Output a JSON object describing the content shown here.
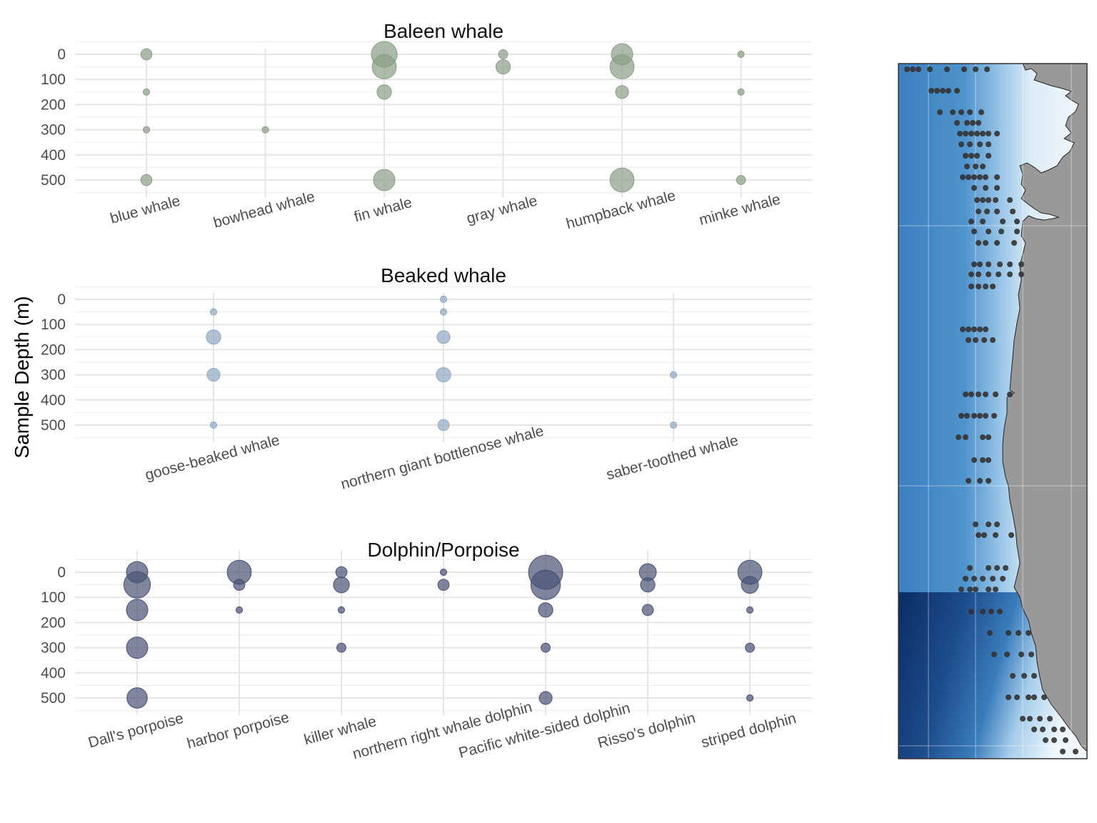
{
  "y_axis_title": "Sample Depth (m)",
  "chart_data": [
    {
      "type": "scatter",
      "title": "Baleen whale",
      "color": "#8a9e86",
      "ylabel": "Sample Depth (m)",
      "y_reversed": true,
      "ylim": [
        0,
        500
      ],
      "y_ticks": [
        0,
        100,
        200,
        300,
        400,
        500
      ],
      "categories": [
        "blue whale",
        "bowhead whale",
        "fin whale",
        "gray whale",
        "humpback whale",
        "minke whale"
      ],
      "points": [
        {
          "category": "blue whale",
          "depth": 0,
          "size": 3
        },
        {
          "category": "blue whale",
          "depth": 150,
          "size": 1
        },
        {
          "category": "blue whale",
          "depth": 300,
          "size": 1
        },
        {
          "category": "blue whale",
          "depth": 500,
          "size": 3
        },
        {
          "category": "bowhead whale",
          "depth": 300,
          "size": 1
        },
        {
          "category": "fin whale",
          "depth": 0,
          "size": 16
        },
        {
          "category": "fin whale",
          "depth": 50,
          "size": 14
        },
        {
          "category": "fin whale",
          "depth": 150,
          "size": 5
        },
        {
          "category": "fin whale",
          "depth": 500,
          "size": 11
        },
        {
          "category": "gray whale",
          "depth": 0,
          "size": 2
        },
        {
          "category": "gray whale",
          "depth": 50,
          "size": 5
        },
        {
          "category": "humpback whale",
          "depth": 0,
          "size": 11
        },
        {
          "category": "humpback whale",
          "depth": 50,
          "size": 14
        },
        {
          "category": "humpback whale",
          "depth": 150,
          "size": 4
        },
        {
          "category": "humpback whale",
          "depth": 500,
          "size": 14
        },
        {
          "category": "minke whale",
          "depth": 0,
          "size": 1
        },
        {
          "category": "minke whale",
          "depth": 150,
          "size": 1
        },
        {
          "category": "minke whale",
          "depth": 500,
          "size": 2
        }
      ]
    },
    {
      "type": "scatter",
      "title": "Beaked whale",
      "color": "#8fa8c2",
      "ylabel": "Sample Depth (m)",
      "y_reversed": true,
      "ylim": [
        0,
        500
      ],
      "y_ticks": [
        0,
        100,
        200,
        300,
        400,
        500
      ],
      "categories": [
        "goose-beaked whale",
        "northern giant bottlenose whale",
        "saber-toothed whale"
      ],
      "points": [
        {
          "category": "goose-beaked whale",
          "depth": 50,
          "size": 1
        },
        {
          "category": "goose-beaked whale",
          "depth": 150,
          "size": 5
        },
        {
          "category": "goose-beaked whale",
          "depth": 300,
          "size": 4
        },
        {
          "category": "goose-beaked whale",
          "depth": 500,
          "size": 1
        },
        {
          "category": "northern giant bottlenose whale",
          "depth": 0,
          "size": 1
        },
        {
          "category": "northern giant bottlenose whale",
          "depth": 50,
          "size": 1
        },
        {
          "category": "northern giant bottlenose whale",
          "depth": 150,
          "size": 4
        },
        {
          "category": "northern giant bottlenose whale",
          "depth": 300,
          "size": 5
        },
        {
          "category": "northern giant bottlenose whale",
          "depth": 500,
          "size": 3
        },
        {
          "category": "saber-toothed whale",
          "depth": 300,
          "size": 1
        },
        {
          "category": "saber-toothed whale",
          "depth": 500,
          "size": 1
        }
      ]
    },
    {
      "type": "scatter",
      "title": "Dolphin/Porpoise",
      "color": "#4a5275",
      "ylabel": "Sample Depth (m)",
      "y_reversed": true,
      "ylim": [
        0,
        500
      ],
      "y_ticks": [
        0,
        100,
        200,
        300,
        400,
        500
      ],
      "categories": [
        "Dall's porpoise",
        "harbor porpoise",
        "killer whale",
        "northern right whale dolphin",
        "Pacific white-sided dolphin",
        "Risso's dolphin",
        "striped dolphin"
      ],
      "points": [
        {
          "category": "Dall's porpoise",
          "depth": 0,
          "size": 11
        },
        {
          "category": "Dall's porpoise",
          "depth": 50,
          "size": 17
        },
        {
          "category": "Dall's porpoise",
          "depth": 150,
          "size": 11
        },
        {
          "category": "Dall's porpoise",
          "depth": 300,
          "size": 11
        },
        {
          "category": "Dall's porpoise",
          "depth": 500,
          "size": 10
        },
        {
          "category": "harbor porpoise",
          "depth": 0,
          "size": 14
        },
        {
          "category": "harbor porpoise",
          "depth": 50,
          "size": 3
        },
        {
          "category": "harbor porpoise",
          "depth": 150,
          "size": 1
        },
        {
          "category": "killer whale",
          "depth": 0,
          "size": 3
        },
        {
          "category": "killer whale",
          "depth": 50,
          "size": 6
        },
        {
          "category": "killer whale",
          "depth": 150,
          "size": 1
        },
        {
          "category": "killer whale",
          "depth": 300,
          "size": 2
        },
        {
          "category": "northern right whale dolphin",
          "depth": 0,
          "size": 1
        },
        {
          "category": "northern right whale dolphin",
          "depth": 50,
          "size": 3
        },
        {
          "category": "Pacific white-sided dolphin",
          "depth": 0,
          "size": 28
        },
        {
          "category": "Pacific white-sided dolphin",
          "depth": 50,
          "size": 21
        },
        {
          "category": "Pacific white-sided dolphin",
          "depth": 150,
          "size": 5
        },
        {
          "category": "Pacific white-sided dolphin",
          "depth": 300,
          "size": 2
        },
        {
          "category": "Pacific white-sided dolphin",
          "depth": 500,
          "size": 4
        },
        {
          "category": "Risso's dolphin",
          "depth": 0,
          "size": 7
        },
        {
          "category": "Risso's dolphin",
          "depth": 50,
          "size": 5
        },
        {
          "category": "Risso's dolphin",
          "depth": 150,
          "size": 3
        },
        {
          "category": "striped dolphin",
          "depth": 0,
          "size": 14
        },
        {
          "category": "striped dolphin",
          "depth": 50,
          "size": 7
        },
        {
          "category": "striped dolphin",
          "depth": 150,
          "size": 1
        },
        {
          "category": "striped dolphin",
          "depth": 300,
          "size": 2
        },
        {
          "category": "striped dolphin",
          "depth": 500,
          "size": 1
        }
      ]
    }
  ],
  "map": {
    "land_color": "#999999",
    "ocean_shallow_color": "#e8f2fb",
    "ocean_mid_color": "#4f93cc",
    "ocean_deep_color": "#0c2c63",
    "station_color": "#333333"
  }
}
